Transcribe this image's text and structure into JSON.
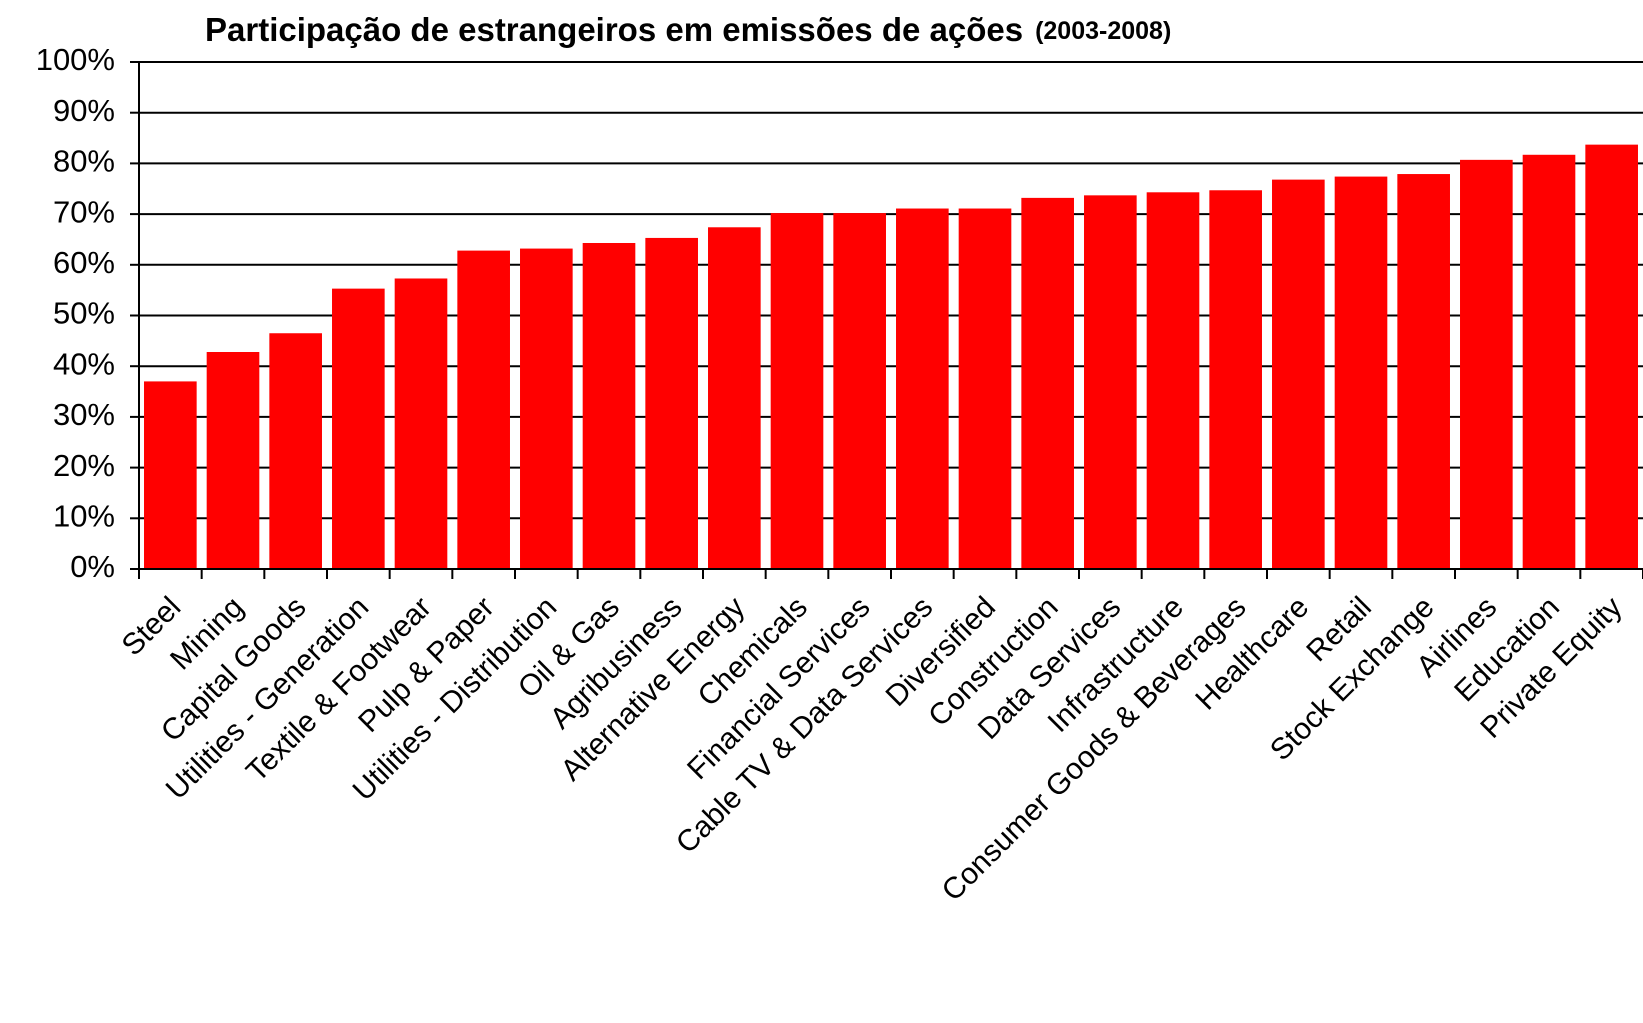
{
  "chart_data": {
    "type": "bar",
    "title": "Participação de estrangeiros em emissões de ações",
    "subtitle": "(2003-2008)",
    "categories": [
      "Steel",
      "Mining",
      "Capital Goods",
      "Utilities - Generation",
      "Textile & Footwear",
      "Pulp & Paper",
      "Utilities - Distribution",
      "Oil & Gas",
      "Agribusiness",
      "Alternative Energy",
      "Chemicals",
      "Financial Services",
      "Cable TV & Data Services",
      "Diversified",
      "Construction",
      "Data Services",
      "Infrastructure",
      "Consumer Goods & Beverages",
      "Healthcare",
      "Retail",
      "Stock Exchange",
      "Airlines",
      "Education",
      "Private Equity"
    ],
    "values": [
      37,
      42.8,
      46.5,
      55.3,
      57.3,
      62.8,
      63.2,
      64.3,
      65.3,
      67.4,
      70.2,
      70.2,
      71.1,
      71.1,
      73.2,
      73.7,
      74.3,
      74.7,
      76.8,
      77.4,
      77.9,
      80.7,
      81.7,
      83.7
    ],
    "color": "#ff0000",
    "ylim": [
      0,
      100
    ],
    "yticks": [
      {
        "value": 0,
        "label": "0%"
      },
      {
        "value": 10,
        "label": "10%"
      },
      {
        "value": 20,
        "label": "20%"
      },
      {
        "value": 30,
        "label": "30%"
      },
      {
        "value": 40,
        "label": "40%"
      },
      {
        "value": 50,
        "label": "50%"
      },
      {
        "value": 60,
        "label": "60%"
      },
      {
        "value": 70,
        "label": "70%"
      },
      {
        "value": 80,
        "label": "80%"
      },
      {
        "value": 90,
        "label": "90%"
      },
      {
        "value": 100,
        "label": "100%"
      }
    ],
    "grid": true
  }
}
